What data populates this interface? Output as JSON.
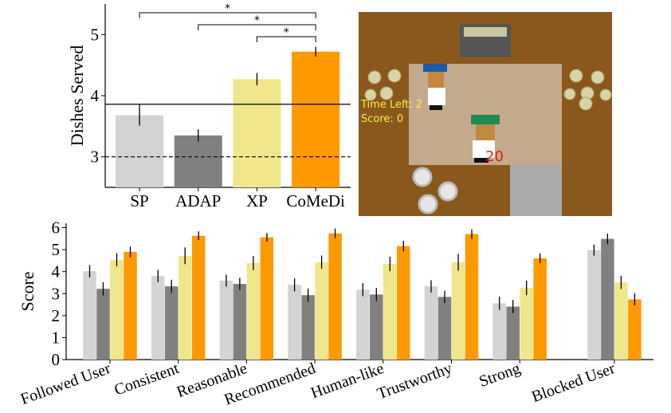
{
  "chart_data": [
    {
      "type": "bar",
      "ylabel": "Dishes Served",
      "categories": [
        "SP",
        "ADAP",
        "XP",
        "CoMeDi"
      ],
      "values": [
        3.68,
        3.35,
        4.27,
        4.72
      ],
      "errors": [
        0.17,
        0.1,
        0.1,
        0.08
      ],
      "colors": [
        "#d3d3d3",
        "#808080",
        "#f0e68c",
        "#ff9900"
      ],
      "ylim": [
        2.5,
        5.5
      ],
      "yticks": [
        3,
        4,
        5
      ],
      "reference_lines": [
        {
          "value": 3.86,
          "style": "solid"
        },
        {
          "value": 3.0,
          "style": "dashed"
        }
      ],
      "annotations": [
        {
          "text": "*",
          "between": [
            "SP",
            "CoMeDi"
          ]
        },
        {
          "text": "*",
          "between": [
            "ADAP",
            "CoMeDi"
          ]
        },
        {
          "text": "*",
          "between": [
            "XP",
            "CoMeDi"
          ]
        }
      ]
    },
    {
      "type": "grouped-bar",
      "ylabel": "Score",
      "categories": [
        "Followed User",
        "Consistent",
        "Reasonable",
        "Recommended",
        "Human-like",
        "Trustworthy",
        "Strong",
        "Blocked User"
      ],
      "series": [
        {
          "color": "#d3d3d3",
          "values": [
            4.02,
            3.8,
            3.59,
            3.4,
            3.18,
            3.33,
            2.56,
            4.98
          ],
          "errors": [
            0.28,
            0.28,
            0.27,
            0.3,
            0.3,
            0.28,
            0.3,
            0.25
          ]
        },
        {
          "color": "#808080",
          "values": [
            3.22,
            3.33,
            3.44,
            2.93,
            2.96,
            2.85,
            2.41,
            5.49
          ],
          "errors": [
            0.3,
            0.3,
            0.28,
            0.3,
            0.3,
            0.28,
            0.3,
            0.24
          ]
        },
        {
          "color": "#f0e68c",
          "values": [
            4.54,
            4.72,
            4.39,
            4.43,
            4.35,
            4.43,
            3.26,
            3.51
          ],
          "errors": [
            0.3,
            0.38,
            0.32,
            0.3,
            0.33,
            0.38,
            0.33,
            0.3
          ]
        },
        {
          "color": "#ff9900",
          "values": [
            4.9,
            5.63,
            5.56,
            5.74,
            5.16,
            5.71,
            4.61,
            2.74
          ],
          "errors": [
            0.24,
            0.2,
            0.2,
            0.22,
            0.24,
            0.22,
            0.22,
            0.28
          ]
        }
      ],
      "ylim": [
        0,
        6.2
      ],
      "yticks": [
        0,
        1,
        2,
        3,
        4,
        5,
        6
      ]
    }
  ],
  "game": {
    "time_left": "Time Left: 2",
    "score": "Score: 0",
    "reward": "20"
  }
}
